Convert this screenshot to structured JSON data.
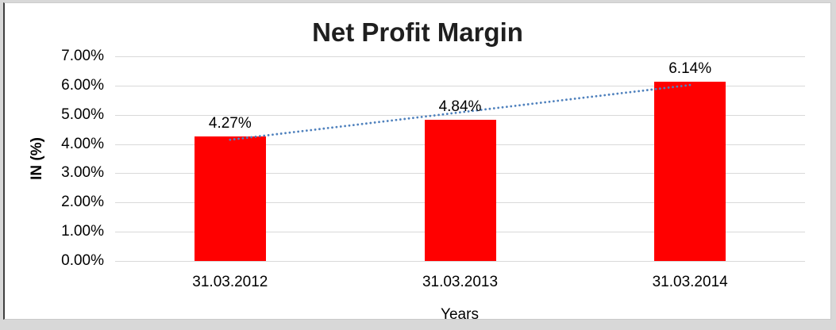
{
  "chart_data": {
    "type": "bar",
    "title": "Net Profit Margin",
    "xlabel": "Years",
    "ylabel": "IN (%)",
    "categories": [
      "31.03.2012",
      "31.03.2013",
      "31.03.2014"
    ],
    "values": [
      4.27,
      4.84,
      6.14
    ],
    "data_labels": [
      "4.27%",
      "4.84%",
      "6.14%"
    ],
    "y_ticks": [
      0,
      1,
      2,
      3,
      4,
      5,
      6,
      7
    ],
    "y_tick_labels": [
      "0.00%",
      "1.00%",
      "2.00%",
      "3.00%",
      "4.00%",
      "5.00%",
      "6.00%",
      "7.00%"
    ],
    "ylim": [
      0,
      7
    ],
    "grid": true,
    "legend": "none",
    "bar_color": "#ff0000",
    "gridline_color": "#d9d9d9",
    "trendline": {
      "type": "linear",
      "style": "dotted",
      "color": "#4f81bd"
    }
  }
}
